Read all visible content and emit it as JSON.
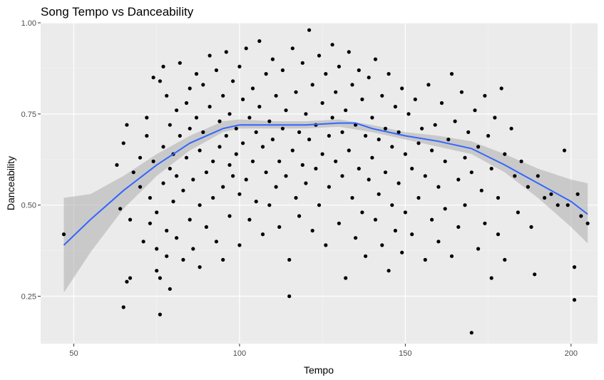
{
  "chart_data": {
    "type": "scatter",
    "title": "Song Tempo vs Danceability",
    "xlabel": "Tempo",
    "ylabel": "Danceability",
    "xlim": [
      40,
      208
    ],
    "ylim": [
      0.12,
      1.0
    ],
    "x_ticks": [
      50,
      100,
      150,
      200
    ],
    "x_tick_labels": [
      "50",
      "100",
      "150",
      "200"
    ],
    "y_ticks": [
      0.25,
      0.5,
      0.75,
      1.0
    ],
    "y_tick_labels": [
      "0.25",
      "0.50",
      "0.75",
      "1.00"
    ],
    "grid": true,
    "legend": "none",
    "colors": {
      "panel_background": "#ebebeb",
      "grid_major": "#ffffff",
      "grid_minor": "#f5f5f5",
      "points": "#000000",
      "smooth_line": "#3366ff",
      "confidence_band": "#b3b3b3"
    },
    "points": [
      [
        47,
        0.42
      ],
      [
        63,
        0.61
      ],
      [
        64,
        0.49
      ],
      [
        65,
        0.67
      ],
      [
        65,
        0.22
      ],
      [
        66,
        0.72
      ],
      [
        66,
        0.29
      ],
      [
        67,
        0.3
      ],
      [
        67,
        0.46
      ],
      [
        68,
        0.59
      ],
      [
        70,
        0.63
      ],
      [
        70,
        0.55
      ],
      [
        71,
        0.4
      ],
      [
        72,
        0.69
      ],
      [
        72,
        0.74
      ],
      [
        73,
        0.52
      ],
      [
        73,
        0.45
      ],
      [
        74,
        0.62
      ],
      [
        74,
        0.85
      ],
      [
        75,
        0.48
      ],
      [
        75,
        0.38
      ],
      [
        75,
        0.32
      ],
      [
        76,
        0.84
      ],
      [
        76,
        0.2
      ],
      [
        76,
        0.3
      ],
      [
        77,
        0.88
      ],
      [
        77,
        0.66
      ],
      [
        77,
        0.56
      ],
      [
        78,
        0.8
      ],
      [
        78,
        0.43
      ],
      [
        78,
        0.36
      ],
      [
        79,
        0.72
      ],
      [
        79,
        0.6
      ],
      [
        79,
        0.27
      ],
      [
        80,
        0.64
      ],
      [
        80,
        0.51
      ],
      [
        81,
        0.76
      ],
      [
        81,
        0.58
      ],
      [
        81,
        0.41
      ],
      [
        82,
        0.89
      ],
      [
        82,
        0.69
      ],
      [
        83,
        0.54
      ],
      [
        83,
        0.35
      ],
      [
        84,
        0.78
      ],
      [
        84,
        0.63
      ],
      [
        85,
        0.82
      ],
      [
        85,
        0.71
      ],
      [
        85,
        0.46
      ],
      [
        86,
        0.57
      ],
      [
        86,
        0.38
      ],
      [
        87,
        0.86
      ],
      [
        87,
        0.74
      ],
      [
        88,
        0.65
      ],
      [
        88,
        0.5
      ],
      [
        88,
        0.33
      ],
      [
        89,
        0.83
      ],
      [
        89,
        0.7
      ],
      [
        90,
        0.59
      ],
      [
        90,
        0.44
      ],
      [
        91,
        0.91
      ],
      [
        91,
        0.77
      ],
      [
        92,
        0.62
      ],
      [
        92,
        0.52
      ],
      [
        93,
        0.4
      ],
      [
        93,
        0.87
      ],
      [
        94,
        0.73
      ],
      [
        94,
        0.66
      ],
      [
        95,
        0.8
      ],
      [
        95,
        0.55
      ],
      [
        95,
        0.35
      ],
      [
        96,
        0.92
      ],
      [
        96,
        0.69
      ],
      [
        97,
        0.75
      ],
      [
        97,
        0.61
      ],
      [
        97,
        0.47
      ],
      [
        98,
        0.84
      ],
      [
        98,
        0.58
      ],
      [
        99,
        0.71
      ],
      [
        99,
        0.64
      ],
      [
        100,
        0.88
      ],
      [
        100,
        0.53
      ],
      [
        100,
        0.39
      ],
      [
        101,
        0.79
      ],
      [
        101,
        0.67
      ],
      [
        102,
        0.93
      ],
      [
        102,
        0.57
      ],
      [
        103,
        0.74
      ],
      [
        103,
        0.46
      ],
      [
        104,
        0.82
      ],
      [
        104,
        0.62
      ],
      [
        105,
        0.7
      ],
      [
        105,
        0.51
      ],
      [
        106,
        0.95
      ],
      [
        106,
        0.77
      ],
      [
        107,
        0.66
      ],
      [
        107,
        0.42
      ],
      [
        108,
        0.86
      ],
      [
        108,
        0.59
      ],
      [
        109,
        0.73
      ],
      [
        109,
        0.5
      ],
      [
        110,
        0.9
      ],
      [
        110,
        0.68
      ],
      [
        111,
        0.8
      ],
      [
        111,
        0.55
      ],
      [
        112,
        0.62
      ],
      [
        112,
        0.44
      ],
      [
        113,
        0.87
      ],
      [
        113,
        0.71
      ],
      [
        114,
        0.76
      ],
      [
        114,
        0.58
      ],
      [
        115,
        0.25
      ],
      [
        115,
        0.35
      ],
      [
        116,
        0.93
      ],
      [
        116,
        0.65
      ],
      [
        117,
        0.81
      ],
      [
        117,
        0.52
      ],
      [
        118,
        0.7
      ],
      [
        118,
        0.47
      ],
      [
        119,
        0.89
      ],
      [
        119,
        0.61
      ],
      [
        120,
        0.75
      ],
      [
        120,
        0.56
      ],
      [
        121,
        0.98
      ],
      [
        121,
        0.68
      ],
      [
        122,
        0.83
      ],
      [
        122,
        0.43
      ],
      [
        123,
        0.72
      ],
      [
        123,
        0.6
      ],
      [
        124,
        0.91
      ],
      [
        124,
        0.5
      ],
      [
        125,
        0.78
      ],
      [
        125,
        0.64
      ],
      [
        126,
        0.86
      ],
      [
        126,
        0.39
      ],
      [
        127,
        0.69
      ],
      [
        127,
        0.55
      ],
      [
        128,
        0.94
      ],
      [
        128,
        0.74
      ],
      [
        129,
        0.81
      ],
      [
        129,
        0.62
      ],
      [
        130,
        0.88
      ],
      [
        130,
        0.45
      ],
      [
        131,
        0.7
      ],
      [
        131,
        0.58
      ],
      [
        132,
        0.76
      ],
      [
        132,
        0.3
      ],
      [
        133,
        0.92
      ],
      [
        133,
        0.65
      ],
      [
        134,
        0.83
      ],
      [
        134,
        0.52
      ],
      [
        135,
        0.72
      ],
      [
        135,
        0.41
      ],
      [
        136,
        0.87
      ],
      [
        136,
        0.6
      ],
      [
        137,
        0.79
      ],
      [
        137,
        0.48
      ],
      [
        138,
        0.69
      ],
      [
        138,
        0.36
      ],
      [
        139,
        0.85
      ],
      [
        139,
        0.57
      ],
      [
        140,
        0.74
      ],
      [
        140,
        0.63
      ],
      [
        141,
        0.9
      ],
      [
        141,
        0.46
      ],
      [
        142,
        0.68
      ],
      [
        142,
        0.53
      ],
      [
        143,
        0.8
      ],
      [
        143,
        0.39
      ],
      [
        144,
        0.71
      ],
      [
        144,
        0.59
      ],
      [
        145,
        0.86
      ],
      [
        145,
        0.32
      ],
      [
        146,
        0.66
      ],
      [
        146,
        0.5
      ],
      [
        147,
        0.77
      ],
      [
        147,
        0.43
      ],
      [
        148,
        0.7
      ],
      [
        148,
        0.56
      ],
      [
        149,
        0.82
      ],
      [
        149,
        0.37
      ],
      [
        150,
        0.64
      ],
      [
        150,
        0.48
      ],
      [
        151,
        0.75
      ],
      [
        152,
        0.6
      ],
      [
        152,
        0.42
      ],
      [
        153,
        0.79
      ],
      [
        154,
        0.67
      ],
      [
        154,
        0.52
      ],
      [
        155,
        0.71
      ],
      [
        156,
        0.58
      ],
      [
        156,
        0.35
      ],
      [
        157,
        0.83
      ],
      [
        158,
        0.65
      ],
      [
        158,
        0.46
      ],
      [
        159,
        0.72
      ],
      [
        160,
        0.55
      ],
      [
        160,
        0.4
      ],
      [
        161,
        0.78
      ],
      [
        162,
        0.62
      ],
      [
        162,
        0.49
      ],
      [
        163,
        0.68
      ],
      [
        164,
        0.86
      ],
      [
        164,
        0.36
      ],
      [
        165,
        0.73
      ],
      [
        166,
        0.57
      ],
      [
        166,
        0.44
      ],
      [
        167,
        0.81
      ],
      [
        168,
        0.63
      ],
      [
        168,
        0.5
      ],
      [
        169,
        0.7
      ],
      [
        170,
        0.59
      ],
      [
        170,
        0.15
      ],
      [
        171,
        0.76
      ],
      [
        172,
        0.66
      ],
      [
        172,
        0.38
      ],
      [
        173,
        0.54
      ],
      [
        174,
        0.8
      ],
      [
        174,
        0.45
      ],
      [
        175,
        0.69
      ],
      [
        176,
        0.6
      ],
      [
        176,
        0.3
      ],
      [
        177,
        0.74
      ],
      [
        178,
        0.52
      ],
      [
        178,
        0.42
      ],
      [
        179,
        0.82
      ],
      [
        180,
        0.64
      ],
      [
        180,
        0.35
      ],
      [
        182,
        0.71
      ],
      [
        183,
        0.58
      ],
      [
        184,
        0.48
      ],
      [
        185,
        0.62
      ],
      [
        187,
        0.55
      ],
      [
        188,
        0.44
      ],
      [
        189,
        0.31
      ],
      [
        190,
        0.58
      ],
      [
        192,
        0.52
      ],
      [
        194,
        0.53
      ],
      [
        196,
        0.5
      ],
      [
        198,
        0.65
      ],
      [
        199,
        0.5
      ],
      [
        201,
        0.33
      ],
      [
        201,
        0.24
      ],
      [
        202,
        0.53
      ],
      [
        203,
        0.47
      ],
      [
        205,
        0.45
      ]
    ],
    "smooth_line": [
      [
        47,
        0.39
      ],
      [
        55,
        0.46
      ],
      [
        65,
        0.54
      ],
      [
        75,
        0.61
      ],
      [
        85,
        0.67
      ],
      [
        95,
        0.71
      ],
      [
        100,
        0.72
      ],
      [
        110,
        0.72
      ],
      [
        120,
        0.72
      ],
      [
        130,
        0.725
      ],
      [
        135,
        0.725
      ],
      [
        140,
        0.71
      ],
      [
        150,
        0.69
      ],
      [
        160,
        0.675
      ],
      [
        170,
        0.655
      ],
      [
        180,
        0.61
      ],
      [
        190,
        0.56
      ],
      [
        200,
        0.51
      ],
      [
        205,
        0.475
      ]
    ],
    "confidence_band": [
      [
        47,
        0.26,
        0.52
      ],
      [
        55,
        0.37,
        0.53
      ],
      [
        65,
        0.49,
        0.58
      ],
      [
        75,
        0.58,
        0.64
      ],
      [
        85,
        0.65,
        0.69
      ],
      [
        95,
        0.7,
        0.73
      ],
      [
        100,
        0.71,
        0.735
      ],
      [
        110,
        0.71,
        0.73
      ],
      [
        120,
        0.71,
        0.73
      ],
      [
        130,
        0.715,
        0.735
      ],
      [
        140,
        0.7,
        0.72
      ],
      [
        150,
        0.68,
        0.7
      ],
      [
        160,
        0.66,
        0.69
      ],
      [
        170,
        0.64,
        0.675
      ],
      [
        180,
        0.59,
        0.64
      ],
      [
        190,
        0.52,
        0.6
      ],
      [
        200,
        0.44,
        0.57
      ],
      [
        205,
        0.395,
        0.56
      ]
    ]
  }
}
